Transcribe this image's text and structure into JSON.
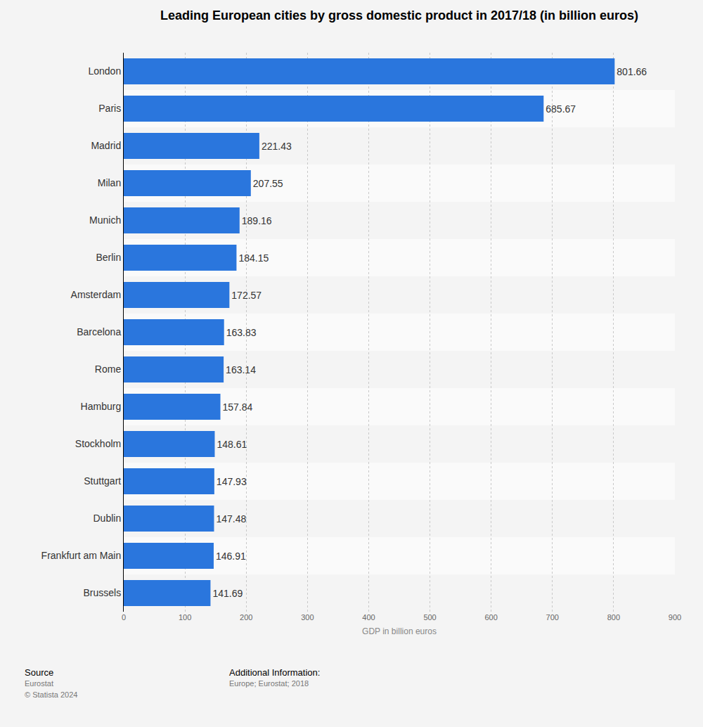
{
  "chart_data": {
    "type": "bar",
    "orientation": "horizontal",
    "title": "Leading European cities by gross domestic product in 2017/18 (in billion euros)",
    "x_label": "GDP in billion euros",
    "categories": [
      "London",
      "Paris",
      "Madrid",
      "Milan",
      "Munich",
      "Berlin",
      "Amsterdam",
      "Barcelona",
      "Rome",
      "Hamburg",
      "Stockholm",
      "Stuttgart",
      "Dublin",
      "Frankfurt am Main",
      "Brussels"
    ],
    "values": [
      801.66,
      685.67,
      221.43,
      207.55,
      189.16,
      184.15,
      172.57,
      163.83,
      163.14,
      157.84,
      148.61,
      147.93,
      147.48,
      146.91,
      141.69
    ],
    "color": "#2a76dd",
    "xlim": [
      0,
      900
    ],
    "xticks": [
      0,
      100,
      200,
      300,
      400,
      500,
      600,
      700,
      800,
      900
    ],
    "grid": true,
    "data_labels": true,
    "source_label": "Source",
    "source": [
      "Eurostat",
      "© Statista 2024"
    ],
    "info_label": "Additional Information:",
    "info": [
      "Europe; Eurostat; 2018"
    ]
  }
}
